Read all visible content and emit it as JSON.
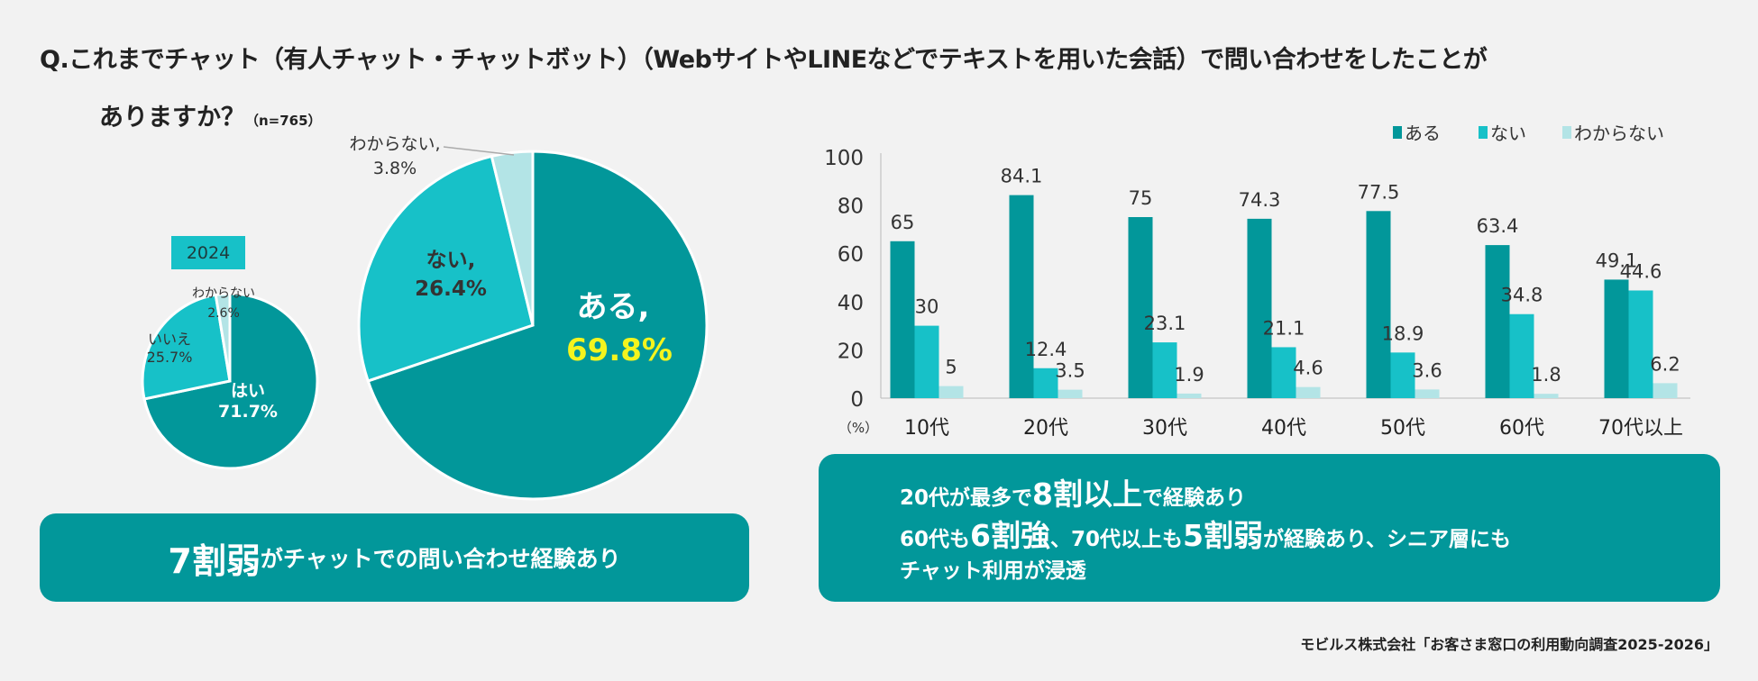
{
  "title": {
    "line1": "Q.これまでチャット（有人チャット・チャットボット）（WebサイトやLINEなどでテキストを用いた会話）で問い合わせをしたことが",
    "line2": "ありますか？",
    "n": "（n=765）"
  },
  "colors": {
    "yes": "#02979a",
    "no": "#17c1c8",
    "unknown": "#b3e4e6",
    "background": "#f2f2f2",
    "highlight": "#f4f41e"
  },
  "chart_data": [
    {
      "type": "pie",
      "title": "2024",
      "slices": [
        {
          "label": "はい",
          "value": 71.7,
          "text": "71.7%"
        },
        {
          "label": "いいえ",
          "value": 25.7,
          "text": "25.7%"
        },
        {
          "label": "わからない",
          "value": 2.6,
          "text": "2.6%"
        }
      ]
    },
    {
      "type": "pie",
      "slices": [
        {
          "label": "ある,",
          "value": 69.8,
          "text": "69.8%"
        },
        {
          "label": "ない,",
          "value": 26.4,
          "text": "26.4%"
        },
        {
          "label": "わからない,",
          "value": 3.8,
          "text": "3.8%"
        }
      ]
    },
    {
      "type": "bar",
      "categories": [
        "10代",
        "20代",
        "30代",
        "40代",
        "50代",
        "60代",
        "70代以上"
      ],
      "series": [
        {
          "name": "ある",
          "values": [
            65.0,
            84.1,
            75.0,
            74.3,
            77.5,
            63.4,
            49.1
          ]
        },
        {
          "name": "ない",
          "values": [
            30.0,
            12.4,
            23.1,
            21.1,
            18.9,
            34.8,
            44.6
          ]
        },
        {
          "name": "わからない",
          "values": [
            5.0,
            3.5,
            1.9,
            4.6,
            3.6,
            1.8,
            6.2
          ]
        }
      ],
      "ylim": [
        0,
        100
      ],
      "yticks": [
        0,
        20,
        40,
        60,
        80,
        100
      ],
      "yunit": "（%）",
      "legend": "top-right",
      "grid": false
    }
  ],
  "left_banner": {
    "big": "7割弱",
    "rest": "がチャットでの問い合わせ経験あり"
  },
  "right_banner": {
    "l1a": "20代が最多で",
    "l1b": "8割以上",
    "l1c": "で経験あり",
    "l2a": "60代も",
    "l2b": "6割強",
    "l2c": "、70代以上も",
    "l2d": "5割弱",
    "l2e": "が経験あり、シニア層にも",
    "l3": "チャット利用が浸透"
  },
  "source": "モビルス株式会社「お客さま窓口の利用動向調査2025-2026」"
}
